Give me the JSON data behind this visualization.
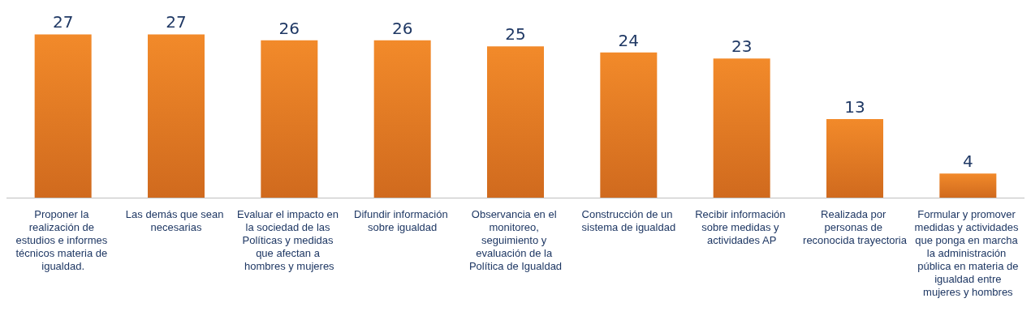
{
  "chart_data": {
    "type": "bar",
    "categories": [
      "Proponer la realización de estudios e informes técnicos materia de igualdad.",
      "Las demás que sean necesarias",
      "Evaluar el impacto en la sociedad de las Políticas y medidas que afectan a hombres y mujeres",
      "Difundir información sobre igualdad",
      "Observancia en el monitoreo, seguimiento y evaluación de la Política de Igualdad",
      "Construcción de un sistema de igualdad",
      "Recibir información sobre medidas y actividades AP",
      "Realizada por personas de reconocida trayectoria",
      "Formular y promover medidas y actividades que ponga en marcha la administración pública en materia de igualdad entre mujeres y hombres"
    ],
    "values": [
      27,
      27,
      26,
      26,
      25,
      24,
      23,
      13,
      4
    ],
    "color": "#f28a2a",
    "data_labels": true
  }
}
